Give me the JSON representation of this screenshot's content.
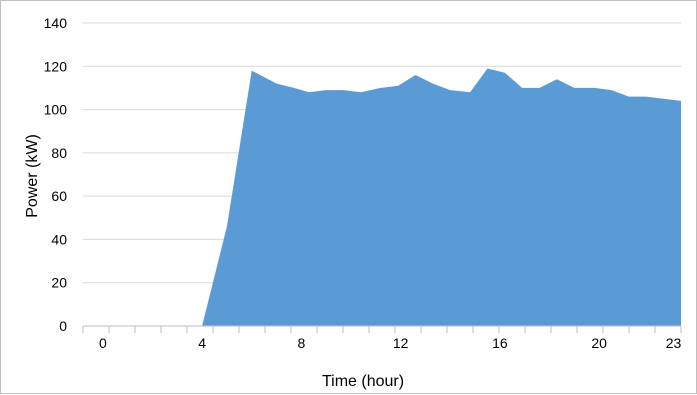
{
  "chart_data": {
    "type": "area",
    "title": "",
    "xlabel": "Time (hour)",
    "ylabel": "Power (kW)",
    "xlim": [
      -0.8,
      23.3
    ],
    "ylim": [
      0,
      140
    ],
    "x_tick_labels": [
      "0",
      "4",
      "8",
      "12",
      "16",
      "20",
      "23"
    ],
    "x_tick_values": [
      0,
      4,
      8,
      12,
      16,
      20,
      23
    ],
    "y_ticks": [
      0,
      20,
      40,
      60,
      80,
      100,
      120,
      140
    ],
    "grid": true,
    "legend": "none",
    "color": "#5b9bd5",
    "series": [
      {
        "x": [
          4.0,
          5.0,
          6.0,
          7.0,
          7.7,
          8.3,
          9.0,
          9.7,
          10.4,
          11.2,
          11.9,
          12.6,
          13.3,
          14.0,
          14.8,
          15.5,
          16.2,
          16.9,
          17.6,
          18.3,
          19.0,
          19.8,
          20.5,
          21.2,
          21.9,
          22.6,
          23.3
        ],
        "values": [
          0,
          46,
          118,
          112,
          110,
          108,
          109,
          109,
          108,
          110,
          111,
          116,
          112,
          109,
          108,
          119,
          117,
          110,
          110,
          114,
          110,
          110,
          109,
          106,
          106,
          105,
          104
        ]
      }
    ]
  }
}
